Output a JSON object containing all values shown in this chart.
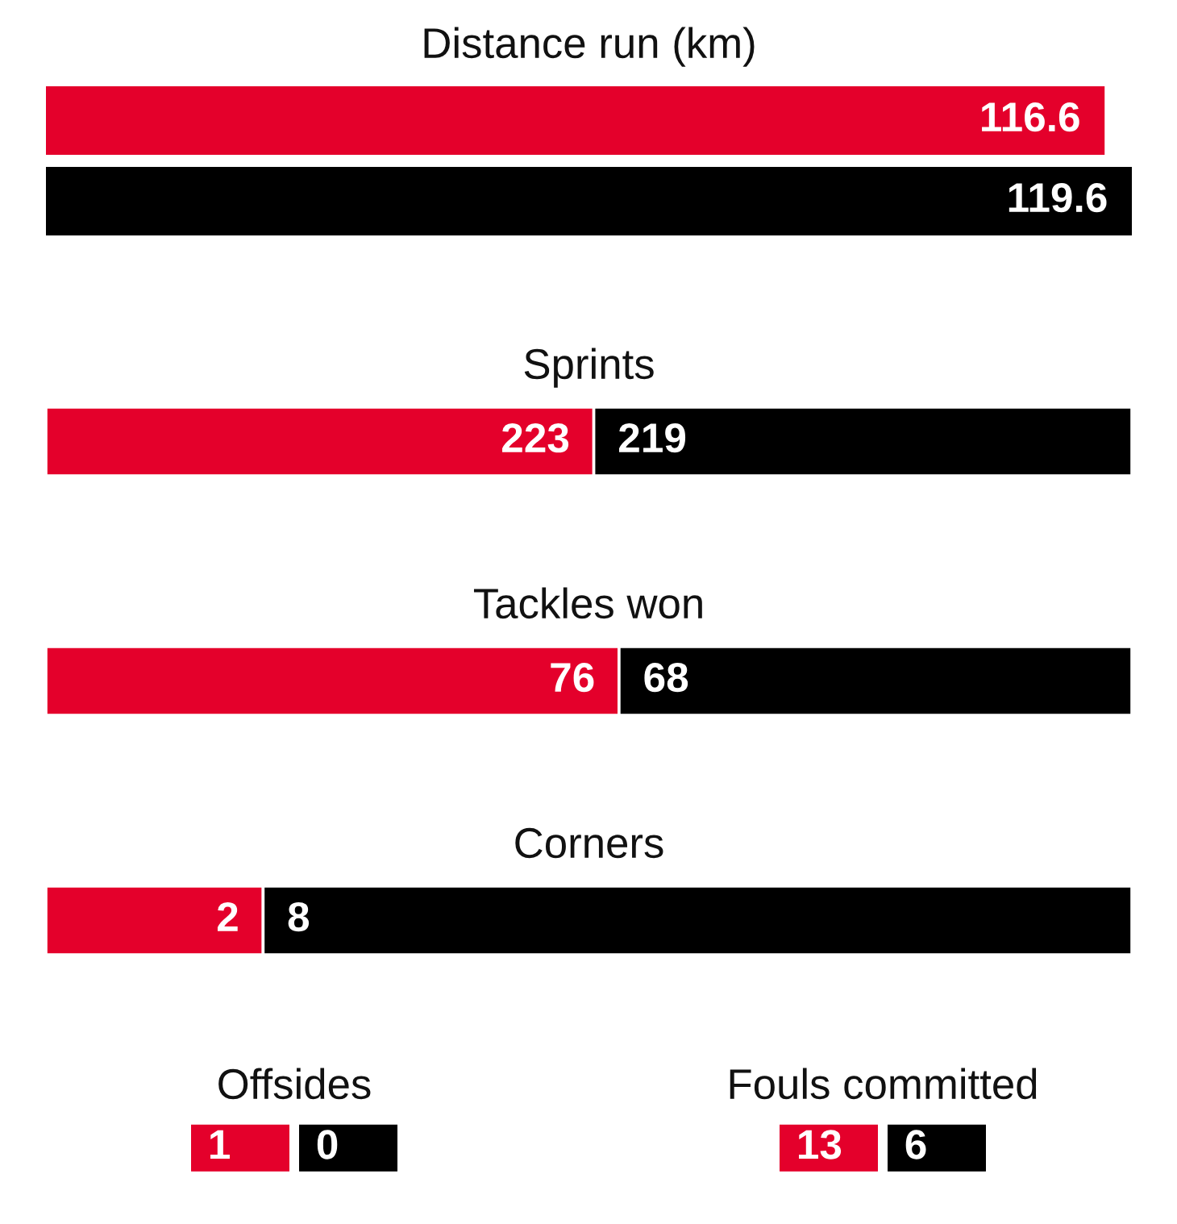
{
  "chart_data": [
    {
      "type": "bar",
      "orientation": "horizontal",
      "title": "Distance run (km)",
      "categories": [
        null
      ],
      "series": [
        {
          "color": "#e4002b",
          "values": [
            116.6
          ]
        },
        {
          "color": "#000000",
          "values": [
            119.6
          ]
        }
      ],
      "data_labels": true
    },
    {
      "type": "bar",
      "orientation": "horizontal",
      "stacked": true,
      "title": "Sprints",
      "categories": [
        null
      ],
      "series": [
        {
          "color": "#e4002b",
          "values": [
            223
          ]
        },
        {
          "color": "#000000",
          "values": [
            219
          ]
        }
      ],
      "data_labels": true
    },
    {
      "type": "bar",
      "orientation": "horizontal",
      "stacked": true,
      "title": "Tackles won",
      "categories": [
        null
      ],
      "series": [
        {
          "color": "#e4002b",
          "values": [
            76
          ]
        },
        {
          "color": "#000000",
          "values": [
            68
          ]
        }
      ],
      "data_labels": true
    },
    {
      "type": "bar",
      "orientation": "horizontal",
      "stacked": true,
      "title": "Corners",
      "categories": [
        null
      ],
      "series": [
        {
          "color": "#e4002b",
          "values": [
            2
          ]
        },
        {
          "color": "#000000",
          "values": [
            8
          ]
        }
      ],
      "data_labels": true
    },
    {
      "type": "other",
      "title": "Offsides",
      "categories": [
        null,
        null
      ],
      "values": [
        1,
        0
      ],
      "colors": [
        "#e4002b",
        "#000000"
      ],
      "data_labels": true
    },
    {
      "type": "other",
      "title": "Fouls committed",
      "categories": [
        null,
        null
      ],
      "values": [
        13,
        6
      ],
      "colors": [
        "#e4002b",
        "#000000"
      ],
      "data_labels": true
    }
  ]
}
